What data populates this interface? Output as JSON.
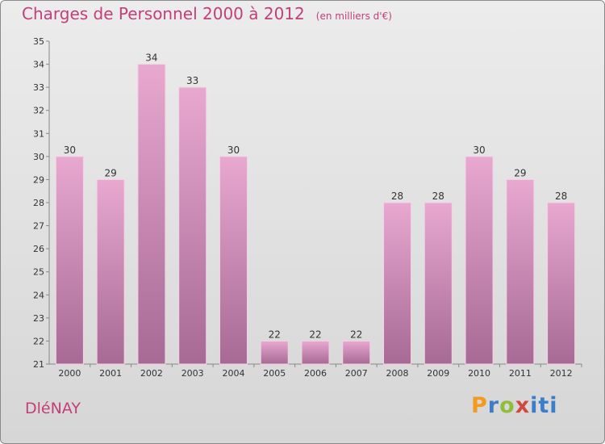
{
  "header": {
    "title": "Charges de Personnel 2000 à 2012",
    "subtitle": "(en milliers d'€)"
  },
  "footer": {
    "town": "DléNAY",
    "brand_letters": [
      "P",
      "r",
      "o",
      "x",
      "iti"
    ]
  },
  "colors": {
    "bar_top": "#e8a8d0",
    "bar_bottom": "#a66a94",
    "title": "#c2407a"
  },
  "chart_data": {
    "type": "bar",
    "title": "Charges de Personnel 2000 à 2012",
    "subtitle": "(en milliers d'€)",
    "categories": [
      "2000",
      "2001",
      "2002",
      "2003",
      "2004",
      "2005",
      "2006",
      "2007",
      "2008",
      "2009",
      "2010",
      "2011",
      "2012"
    ],
    "values": [
      30,
      29,
      34,
      33,
      30,
      22,
      22,
      22,
      28,
      28,
      30,
      29,
      28
    ],
    "ylim": [
      21,
      35
    ],
    "yticks": [
      21,
      22,
      23,
      24,
      25,
      26,
      27,
      28,
      29,
      30,
      31,
      32,
      33,
      34,
      35
    ],
    "grid": false,
    "data_labels": true
  }
}
